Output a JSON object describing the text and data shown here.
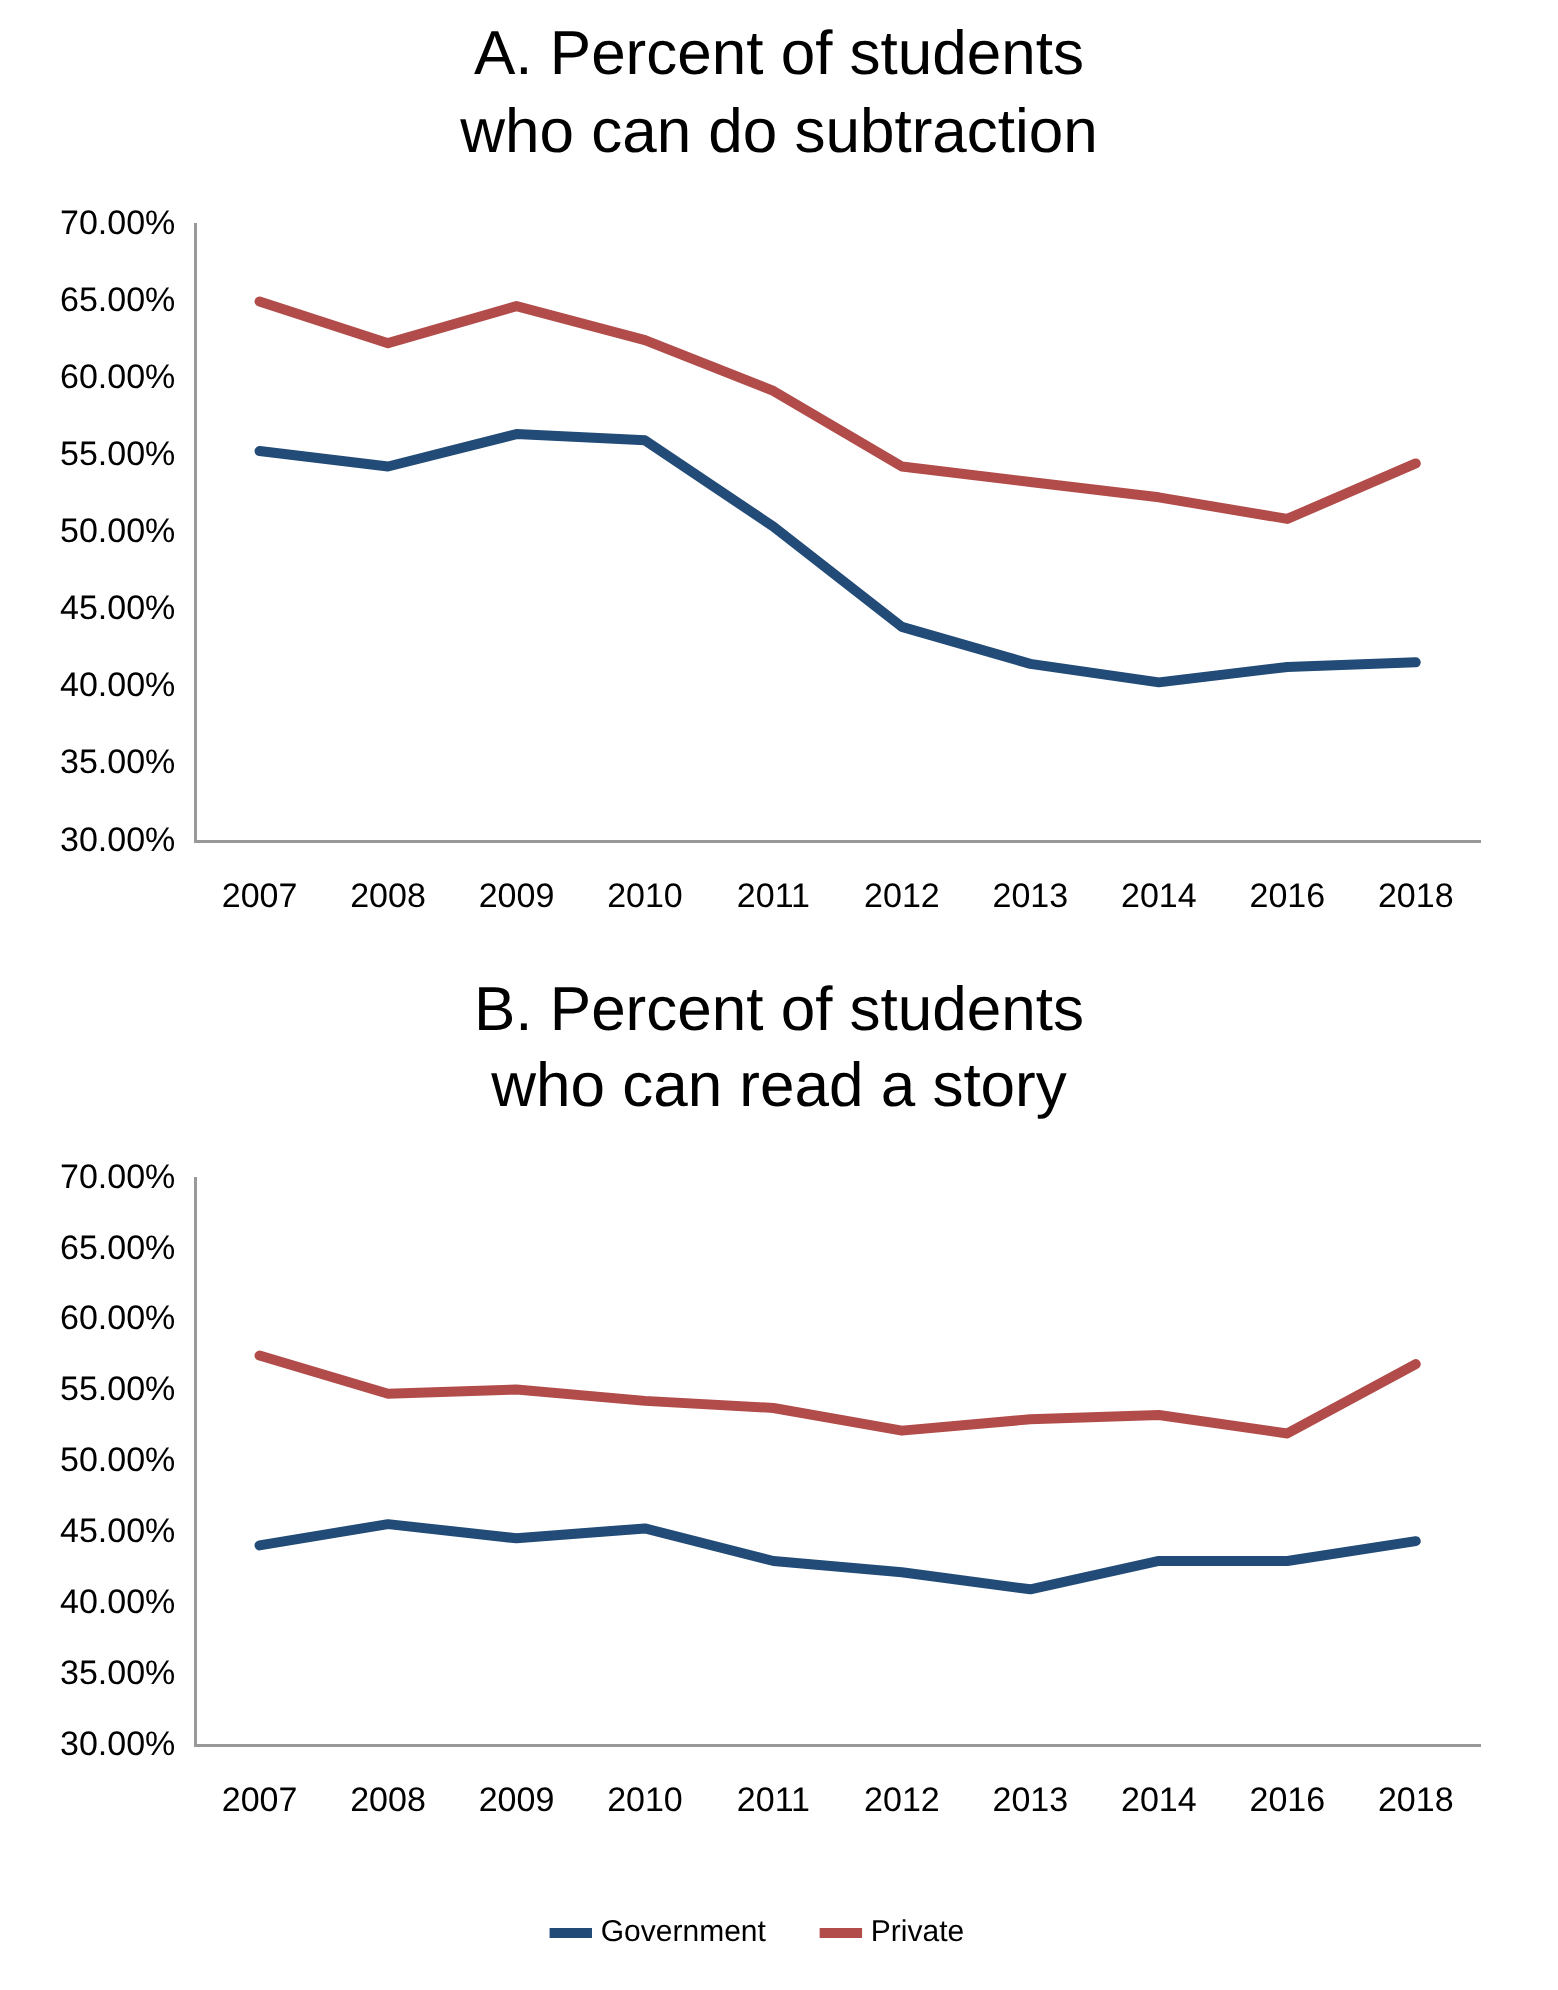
{
  "chart_data": [
    {
      "type": "line",
      "title": "A. Percent of students who can do subtraction",
      "categories": [
        "2007",
        "2008",
        "2009",
        "2010",
        "2011",
        "2012",
        "2013",
        "2014",
        "2016",
        "2018"
      ],
      "series": [
        {
          "color": "#224b77",
          "values": [
            55.3,
            54.3,
            56.4,
            56.0,
            50.4,
            43.9,
            41.5,
            40.3,
            41.3,
            41.6
          ]
        },
        {
          "color": "#b24c4a",
          "values": [
            65.0,
            62.3,
            64.7,
            62.5,
            59.2,
            54.3,
            53.3,
            52.3,
            50.9,
            54.5
          ]
        }
      ],
      "ylim": [
        30,
        70
      ],
      "yticks": [
        {
          "value": 30,
          "label": "30.00%"
        },
        {
          "value": 35,
          "label": "35.00%"
        },
        {
          "value": 40,
          "label": "40.00%"
        },
        {
          "value": 45,
          "label": "45.00%"
        },
        {
          "value": 50,
          "label": "50.00%"
        },
        {
          "value": 55,
          "label": "55.00%"
        },
        {
          "value": 60,
          "label": "60.00%"
        },
        {
          "value": 65,
          "label": "65.00%"
        },
        {
          "value": 70,
          "label": "70.00%"
        }
      ],
      "grid": false,
      "legend": false,
      "marker": "none",
      "line_style": "solid"
    },
    {
      "type": "line",
      "title": "B. Percent of students who can read a story",
      "categories": [
        "2007",
        "2008",
        "2009",
        "2010",
        "2011",
        "2012",
        "2013",
        "2014",
        "2016",
        "2018"
      ],
      "series": [
        {
          "name": "Government",
          "color": "#224b77",
          "values": [
            44.1,
            45.6,
            44.6,
            45.3,
            43.0,
            42.2,
            41.0,
            43.0,
            43.0,
            44.4
          ]
        },
        {
          "name": "Private",
          "color": "#b24c4a",
          "values": [
            57.5,
            54.8,
            55.1,
            54.3,
            53.8,
            52.2,
            53.0,
            53.3,
            52.0,
            56.9
          ]
        }
      ],
      "ylim": [
        30,
        70
      ],
      "yticks": [
        {
          "value": 30,
          "label": "30.00%"
        },
        {
          "value": 35,
          "label": "35.00%"
        },
        {
          "value": 40,
          "label": "40.00%"
        },
        {
          "value": 45,
          "label": "45.00%"
        },
        {
          "value": 50,
          "label": "50.00%"
        },
        {
          "value": 55,
          "label": "55.00%"
        },
        {
          "value": 60,
          "label": "60.00%"
        },
        {
          "value": 65,
          "label": "65.00%"
        },
        {
          "value": 70,
          "label": "70.00%"
        }
      ],
      "grid": false,
      "legend": "bottom",
      "marker": "none",
      "line_style": "solid"
    }
  ]
}
